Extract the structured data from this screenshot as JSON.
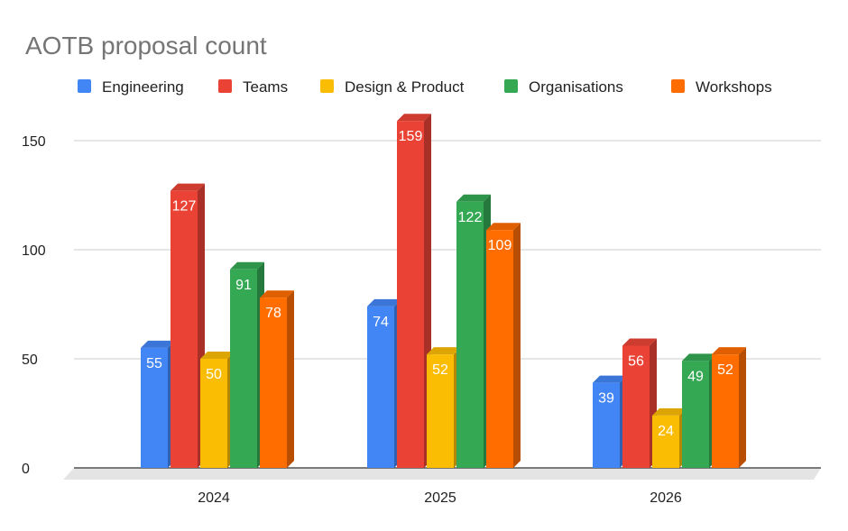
{
  "chart_data": {
    "type": "bar",
    "title": "AOTB proposal count",
    "categories": [
      "2024",
      "2025",
      "2026"
    ],
    "series": [
      {
        "name": "Engineering",
        "values": [
          55,
          74,
          39
        ],
        "color": "#4285F4"
      },
      {
        "name": "Teams",
        "values": [
          127,
          159,
          56
        ],
        "color": "#EA4335"
      },
      {
        "name": "Design & Product",
        "values": [
          50,
          52,
          24
        ],
        "color": "#FBBC04"
      },
      {
        "name": "Organisations",
        "values": [
          91,
          122,
          49
        ],
        "color": "#34A853"
      },
      {
        "name": "Workshops",
        "values": [
          78,
          109,
          52
        ],
        "color": "#FF6D01"
      }
    ],
    "yticks": [
      0,
      50,
      100,
      150
    ],
    "ylim": [
      0,
      160
    ],
    "xlabel": "",
    "ylabel": "",
    "legend_position": "top",
    "grid": true
  }
}
